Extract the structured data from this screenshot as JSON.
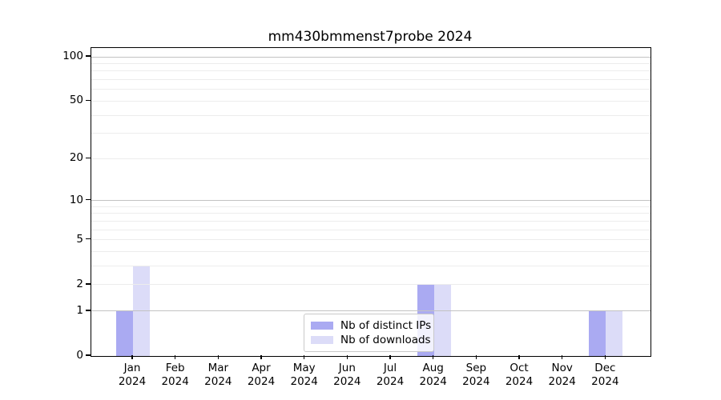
{
  "chart_data": {
    "type": "bar",
    "title": "mm430bmmenst7probe 2024",
    "categories": [
      "Jan",
      "Feb",
      "Mar",
      "Apr",
      "May",
      "Jun",
      "Jul",
      "Aug",
      "Sep",
      "Oct",
      "Nov",
      "Dec"
    ],
    "year_label": "2024",
    "series": [
      {
        "name": "Nb of distinct IPs",
        "color": "#aaaaf2",
        "values": [
          1,
          0,
          0,
          0,
          0,
          0,
          0,
          2,
          0,
          0,
          0,
          1
        ]
      },
      {
        "name": "Nb of downloads",
        "color": "#dcdcf8",
        "values": [
          3,
          0,
          0,
          0,
          0,
          0,
          0,
          2,
          0,
          0,
          0,
          1
        ]
      }
    ],
    "yscale": "log1p",
    "ylim": [
      0,
      112
    ],
    "yticks": [
      0,
      1,
      2,
      5,
      10,
      20,
      50,
      100
    ],
    "grid": {
      "major_values": [
        1,
        10,
        100
      ],
      "minor_values": [
        2,
        3,
        4,
        5,
        6,
        7,
        8,
        9,
        20,
        30,
        40,
        50,
        60,
        70,
        80,
        90
      ],
      "major_color": "#c2c2c2",
      "minor_color": "#ececec"
    },
    "legend_position": "bottom-center",
    "colors": {
      "spine": "#000000",
      "text": "#000000",
      "background": "#ffffff"
    }
  }
}
